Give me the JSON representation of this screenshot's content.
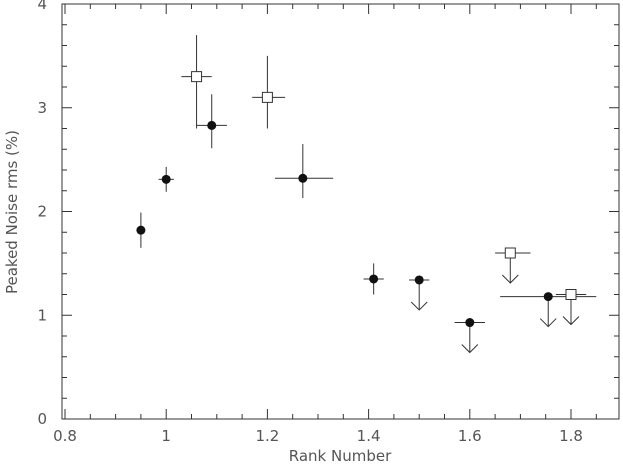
{
  "chart_data": {
    "type": "scatter",
    "title": "",
    "xlabel": "Rank Number",
    "ylabel": "Peaked Noise rms (%)",
    "xlim": [
      0.8,
      1.85
    ],
    "ylim": [
      0,
      4
    ],
    "xticks": {
      "major": [
        0.8,
        1.0,
        1.2,
        1.4,
        1.6,
        1.8
      ],
      "labels": [
        "0.8",
        "1",
        "1.2",
        "1.4",
        "1.6",
        "1.8"
      ],
      "minor_step": 0.05
    },
    "yticks": {
      "major": [
        0,
        1,
        2,
        3,
        4
      ],
      "labels": [
        "0",
        "1",
        "2",
        "3",
        "4"
      ],
      "minor_step": 0.2
    },
    "grid": false,
    "series": [
      {
        "marker": "filled-circle",
        "points": [
          {
            "x": 0.95,
            "y": 1.82,
            "xerr": [
              0.945,
              0.955
            ],
            "yerr": [
              1.65,
              1.99
            ],
            "upper_limit": false
          },
          {
            "x": 1.0,
            "y": 2.31,
            "xerr": [
              0.985,
              1.015
            ],
            "yerr": [
              2.19,
              2.43
            ],
            "upper_limit": false
          },
          {
            "x": 1.09,
            "y": 2.83,
            "xerr": [
              1.06,
              1.12
            ],
            "yerr": [
              2.61,
              3.13
            ],
            "upper_limit": false
          },
          {
            "x": 1.27,
            "y": 2.32,
            "xerr": [
              1.215,
              1.33
            ],
            "yerr": [
              2.13,
              2.65
            ],
            "upper_limit": false
          },
          {
            "x": 1.41,
            "y": 1.35,
            "xerr": [
              1.39,
              1.43
            ],
            "yerr": [
              1.2,
              1.5
            ],
            "upper_limit": false
          },
          {
            "x": 1.5,
            "y": 1.34,
            "xerr": [
              1.48,
              1.52
            ],
            "upper_limit": true
          },
          {
            "x": 1.6,
            "y": 0.93,
            "xerr": [
              1.57,
              1.63
            ],
            "upper_limit": true
          },
          {
            "x": 1.755,
            "y": 1.18,
            "xerr": [
              1.66,
              1.85
            ],
            "upper_limit": true
          }
        ]
      },
      {
        "marker": "open-square",
        "points": [
          {
            "x": 1.06,
            "y": 3.3,
            "xerr": [
              1.03,
              1.09
            ],
            "yerr": [
              2.8,
              3.7
            ],
            "upper_limit": false
          },
          {
            "x": 1.2,
            "y": 3.1,
            "xerr": [
              1.17,
              1.235
            ],
            "yerr": [
              2.8,
              3.5
            ],
            "upper_limit": false
          },
          {
            "x": 1.68,
            "y": 1.6,
            "xerr": [
              1.65,
              1.72
            ],
            "upper_limit": true
          },
          {
            "x": 1.8,
            "y": 1.2,
            "xerr": [
              1.77,
              1.83
            ],
            "upper_limit": true
          }
        ]
      }
    ]
  }
}
